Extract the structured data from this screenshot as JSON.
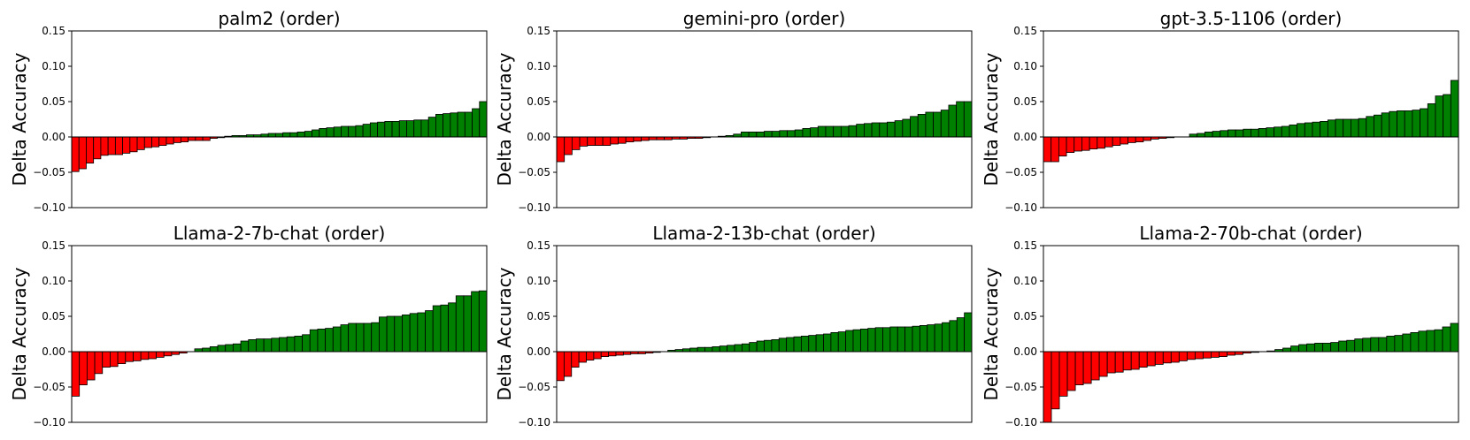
{
  "chart_data": [
    {
      "type": "bar",
      "title": "palm2 (order)",
      "ylabel": "Delta Accuracy",
      "ylim": [
        -0.1,
        0.15
      ],
      "yticks": [
        "0.15",
        "0.10",
        "0.05",
        "0.00",
        "−0.05",
        "−0.10"
      ],
      "positive_color": "#008000",
      "negative_color": "#ff0000",
      "values": [
        -0.049,
        -0.045,
        -0.037,
        -0.031,
        -0.026,
        -0.025,
        -0.025,
        -0.023,
        -0.021,
        -0.018,
        -0.015,
        -0.014,
        -0.012,
        -0.01,
        -0.008,
        -0.007,
        -0.005,
        -0.005,
        -0.005,
        -0.002,
        -0.001,
        0.001,
        0.002,
        0.002,
        0.003,
        0.003,
        0.004,
        0.005,
        0.005,
        0.006,
        0.006,
        0.007,
        0.008,
        0.01,
        0.012,
        0.013,
        0.014,
        0.015,
        0.015,
        0.016,
        0.018,
        0.02,
        0.021,
        0.022,
        0.022,
        0.023,
        0.023,
        0.024,
        0.024,
        0.028,
        0.032,
        0.033,
        0.034,
        0.035,
        0.035,
        0.04,
        0.05
      ]
    },
    {
      "type": "bar",
      "title": "gemini-pro (order)",
      "ylabel": "Delta Accuracy",
      "ylim": [
        -0.1,
        0.15
      ],
      "yticks": [
        "0.15",
        "0.10",
        "0.05",
        "0.00",
        "−0.05",
        "−0.10"
      ],
      "positive_color": "#008000",
      "negative_color": "#ff0000",
      "values": [
        -0.035,
        -0.025,
        -0.018,
        -0.013,
        -0.012,
        -0.012,
        -0.012,
        -0.01,
        -0.009,
        -0.007,
        -0.006,
        -0.005,
        -0.004,
        -0.004,
        -0.004,
        -0.003,
        -0.003,
        -0.002,
        -0.002,
        -0.001,
        0.0,
        0.001,
        0.002,
        0.004,
        0.007,
        0.007,
        0.007,
        0.008,
        0.008,
        0.009,
        0.009,
        0.01,
        0.012,
        0.013,
        0.015,
        0.015,
        0.015,
        0.015,
        0.016,
        0.018,
        0.019,
        0.02,
        0.02,
        0.021,
        0.023,
        0.025,
        0.029,
        0.032,
        0.035,
        0.035,
        0.038,
        0.045,
        0.05,
        0.05
      ]
    },
    {
      "type": "bar",
      "title": "gpt-3.5-1106 (order)",
      "ylabel": "Delta Accuracy",
      "ylim": [
        -0.1,
        0.15
      ],
      "yticks": [
        "0.15",
        "0.10",
        "0.05",
        "0.00",
        "−0.05",
        "−0.10"
      ],
      "positive_color": "#008000",
      "negative_color": "#ff0000",
      "values": [
        -0.035,
        -0.035,
        -0.027,
        -0.022,
        -0.02,
        -0.019,
        -0.017,
        -0.016,
        -0.014,
        -0.012,
        -0.01,
        -0.008,
        -0.007,
        -0.005,
        -0.003,
        -0.002,
        -0.001,
        0.0,
        0.0,
        0.004,
        0.005,
        0.007,
        0.008,
        0.009,
        0.01,
        0.01,
        0.011,
        0.011,
        0.012,
        0.013,
        0.014,
        0.015,
        0.017,
        0.019,
        0.02,
        0.021,
        0.022,
        0.024,
        0.025,
        0.025,
        0.025,
        0.026,
        0.029,
        0.031,
        0.034,
        0.036,
        0.037,
        0.037,
        0.038,
        0.04,
        0.047,
        0.058,
        0.06,
        0.08
      ]
    },
    {
      "type": "bar",
      "title": "Llama-2-7b-chat (order)",
      "ylabel": "Delta Accuracy",
      "ylim": [
        -0.1,
        0.15
      ],
      "yticks": [
        "0.15",
        "0.10",
        "0.05",
        "0.00",
        "−0.05",
        "−0.10"
      ],
      "positive_color": "#008000",
      "negative_color": "#ff0000",
      "values": [
        -0.063,
        -0.047,
        -0.04,
        -0.031,
        -0.022,
        -0.021,
        -0.017,
        -0.014,
        -0.013,
        -0.011,
        -0.01,
        -0.008,
        -0.006,
        -0.004,
        -0.002,
        0.0,
        0.004,
        0.005,
        0.007,
        0.009,
        0.01,
        0.011,
        0.015,
        0.017,
        0.018,
        0.018,
        0.019,
        0.02,
        0.021,
        0.022,
        0.024,
        0.031,
        0.032,
        0.033,
        0.035,
        0.038,
        0.04,
        0.04,
        0.04,
        0.041,
        0.049,
        0.05,
        0.05,
        0.052,
        0.054,
        0.055,
        0.058,
        0.065,
        0.066,
        0.069,
        0.079,
        0.079,
        0.085,
        0.086
      ]
    },
    {
      "type": "bar",
      "title": "Llama-2-13b-chat (order)",
      "ylabel": "Delta Accuracy",
      "ylim": [
        -0.1,
        0.15
      ],
      "yticks": [
        "0.15",
        "0.10",
        "0.05",
        "0.00",
        "−0.05",
        "−0.10"
      ],
      "positive_color": "#008000",
      "negative_color": "#ff0000",
      "values": [
        -0.041,
        -0.035,
        -0.022,
        -0.015,
        -0.012,
        -0.01,
        -0.007,
        -0.006,
        -0.005,
        -0.004,
        -0.003,
        -0.003,
        -0.002,
        -0.001,
        0.0,
        0.002,
        0.003,
        0.004,
        0.005,
        0.006,
        0.006,
        0.007,
        0.008,
        0.009,
        0.01,
        0.011,
        0.013,
        0.015,
        0.016,
        0.017,
        0.019,
        0.02,
        0.021,
        0.022,
        0.023,
        0.024,
        0.025,
        0.027,
        0.028,
        0.03,
        0.031,
        0.032,
        0.033,
        0.034,
        0.034,
        0.035,
        0.035,
        0.035,
        0.036,
        0.037,
        0.038,
        0.039,
        0.041,
        0.044,
        0.048,
        0.055
      ]
    },
    {
      "type": "bar",
      "title": "Llama-2-70b-chat (order)",
      "ylabel": "Delta Accuracy",
      "ylim": [
        -0.1,
        0.15
      ],
      "yticks": [
        "0.15",
        "0.10",
        "0.05",
        "0.00",
        "−0.05",
        "−0.10"
      ],
      "positive_color": "#008000",
      "negative_color": "#ff0000",
      "values": [
        -0.1,
        -0.081,
        -0.063,
        -0.055,
        -0.047,
        -0.045,
        -0.04,
        -0.035,
        -0.03,
        -0.029,
        -0.026,
        -0.025,
        -0.022,
        -0.02,
        -0.018,
        -0.016,
        -0.015,
        -0.013,
        -0.011,
        -0.01,
        -0.009,
        -0.008,
        -0.007,
        -0.005,
        -0.004,
        -0.002,
        -0.001,
        0.0,
        0.001,
        0.003,
        0.005,
        0.008,
        0.01,
        0.011,
        0.012,
        0.012,
        0.013,
        0.015,
        0.016,
        0.018,
        0.019,
        0.02,
        0.02,
        0.022,
        0.023,
        0.025,
        0.027,
        0.029,
        0.03,
        0.031,
        0.035,
        0.04
      ]
    }
  ]
}
